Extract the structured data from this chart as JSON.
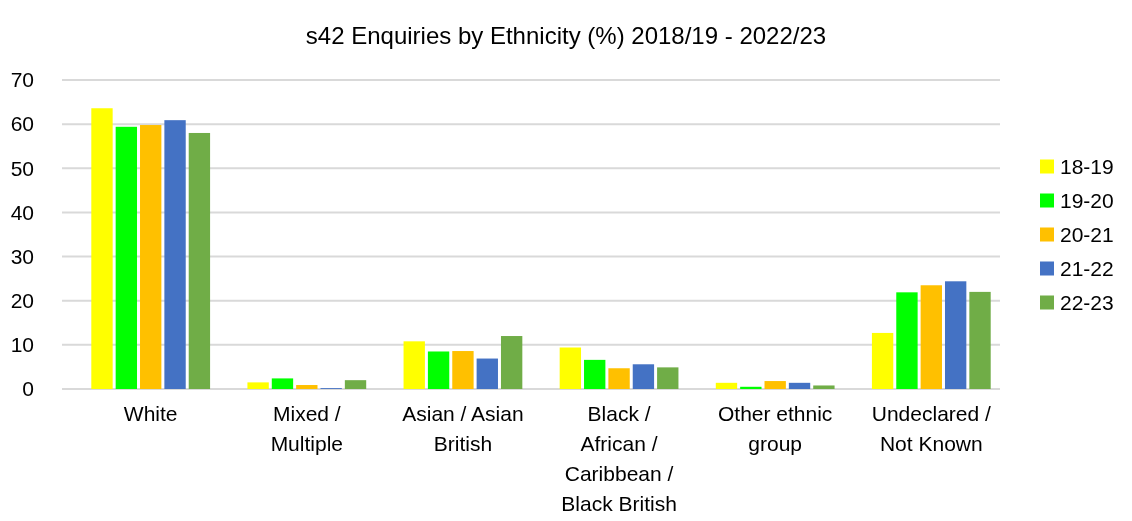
{
  "chart_data": {
    "type": "bar",
    "title": "s42 Enquiries by Ethnicity (%) 2018/19 - 2022/23",
    "categories": [
      "White",
      "Mixed / Multiple",
      "Asian / Asian British",
      "Black / African / Caribbean / Black British",
      "Other ethnic group",
      "Undeclared / Not Known"
    ],
    "series": [
      {
        "name": "18-19",
        "color": "#ffff00",
        "values": [
          63.6,
          1.5,
          10.8,
          9.4,
          1.4,
          12.7
        ]
      },
      {
        "name": "19-20",
        "color": "#00ff00",
        "values": [
          59.4,
          2.4,
          8.5,
          6.6,
          0.5,
          21.9
        ]
      },
      {
        "name": "20-21",
        "color": "#ffc000",
        "values": [
          59.8,
          0.9,
          8.6,
          4.7,
          1.8,
          23.5
        ]
      },
      {
        "name": "21-22",
        "color": "#4472c4",
        "values": [
          60.9,
          0.2,
          6.9,
          5.6,
          1.4,
          24.4
        ]
      },
      {
        "name": "22-23",
        "color": "#70ad47",
        "values": [
          58.0,
          2.0,
          12.0,
          4.9,
          0.8,
          22.0
        ]
      }
    ],
    "ylim": [
      0,
      70
    ],
    "yticks": [
      0,
      10,
      20,
      30,
      40,
      50,
      60,
      70
    ],
    "grid": "y",
    "legend": "right"
  }
}
